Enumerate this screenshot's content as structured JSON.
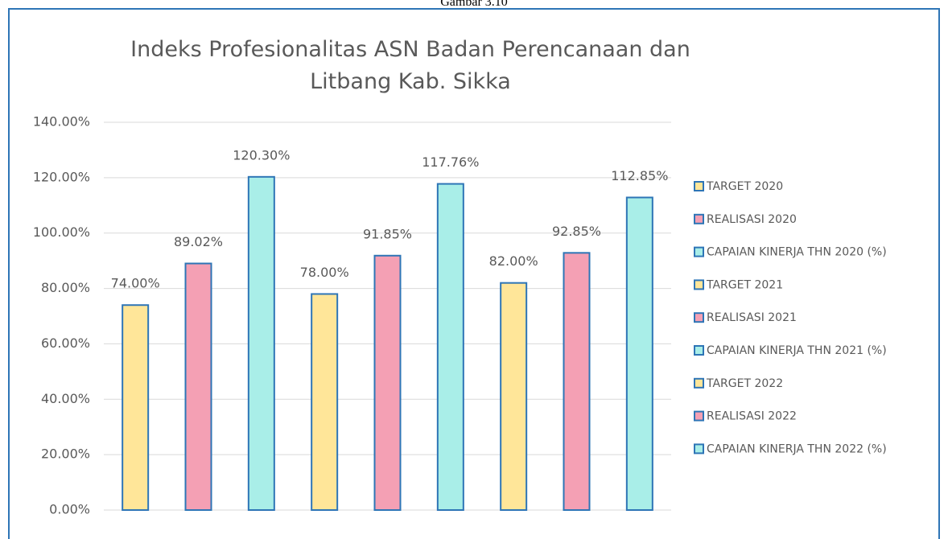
{
  "caption": "Gambar 3.10",
  "chart_data": {
    "type": "bar",
    "title": "Indeks Profesionalitas ASN Badan Perencanaan dan Litbang Kab. Sikka",
    "ylim": [
      0,
      140
    ],
    "yticks": [
      {
        "value": 0,
        "label": "0.00%"
      },
      {
        "value": 20,
        "label": "20.00%"
      },
      {
        "value": 40,
        "label": "40.00%"
      },
      {
        "value": 60,
        "label": "60.00%"
      },
      {
        "value": 80,
        "label": "80.00%"
      },
      {
        "value": 100,
        "label": "100.00%"
      },
      {
        "value": 120,
        "label": "120.00%"
      },
      {
        "value": 140,
        "label": "140.00%"
      }
    ],
    "grid": true,
    "legend": "right",
    "series": [
      {
        "name": "TARGET 2020",
        "color": "#ffe699",
        "values": [
          74
        ],
        "value_labels": [
          "74.00%"
        ]
      },
      {
        "name": "REALISASI 2020",
        "color": "#f4a0b4",
        "values": [
          89.02
        ],
        "value_labels": [
          "89.02%"
        ]
      },
      {
        "name": "CAPAIAN KINERJA THN 2020 (%)",
        "color": "#a9eee8",
        "values": [
          120.3
        ],
        "value_labels": [
          "120.30%"
        ]
      },
      {
        "name": "TARGET 2021",
        "color": "#ffe699",
        "values": [
          78
        ],
        "value_labels": [
          "78.00%"
        ]
      },
      {
        "name": "REALISASI 2021",
        "color": "#f4a0b4",
        "values": [
          91.85
        ],
        "value_labels": [
          "91.85%"
        ]
      },
      {
        "name": "CAPAIAN KINERJA THN 2021 (%)",
        "color": "#a9eee8",
        "values": [
          117.76
        ],
        "value_labels": [
          "117.76%"
        ]
      },
      {
        "name": "TARGET 2022",
        "color": "#ffe699",
        "values": [
          82
        ],
        "value_labels": [
          "82.00%"
        ]
      },
      {
        "name": "REALISASI 2022",
        "color": "#f4a0b4",
        "values": [
          92.85
        ],
        "value_labels": [
          "92.85%"
        ]
      },
      {
        "name": "CAPAIAN KINERJA THN 2022 (%)",
        "color": "#a9eee8",
        "values": [
          112.85
        ],
        "value_labels": [
          "112.85%"
        ]
      }
    ]
  }
}
